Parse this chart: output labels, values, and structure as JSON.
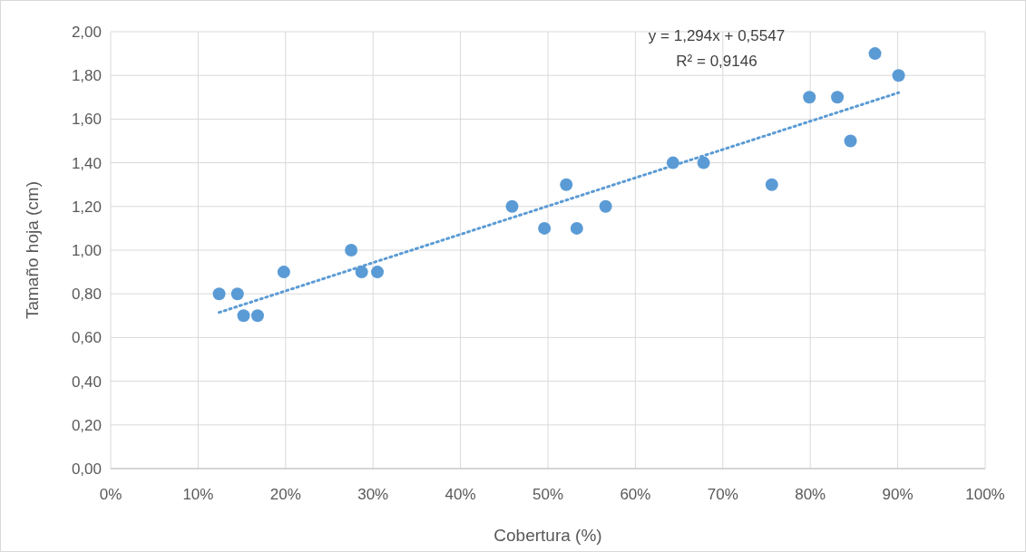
{
  "chart_data": {
    "type": "scatter",
    "xlabel": "Cobertura (%)",
    "ylabel": "Tamaño hoja (cm)",
    "annotations": [
      "y = 1,294x + 0,5547",
      "R² = 0,9146"
    ],
    "xlim": [
      0,
      100
    ],
    "ylim": [
      0,
      2
    ],
    "xticks": [
      {
        "value": 0,
        "label": "0%"
      },
      {
        "value": 10,
        "label": "10%"
      },
      {
        "value": 20,
        "label": "20%"
      },
      {
        "value": 30,
        "label": "30%"
      },
      {
        "value": 40,
        "label": "40%"
      },
      {
        "value": 50,
        "label": "50%"
      },
      {
        "value": 60,
        "label": "60%"
      },
      {
        "value": 70,
        "label": "70%"
      },
      {
        "value": 80,
        "label": "80%"
      },
      {
        "value": 90,
        "label": "90%"
      },
      {
        "value": 100,
        "label": "100%"
      }
    ],
    "yticks": [
      {
        "value": 0,
        "label": "0,00"
      },
      {
        "value": 0.2,
        "label": "0,20"
      },
      {
        "value": 0.4,
        "label": "0,40"
      },
      {
        "value": 0.6,
        "label": "0,60"
      },
      {
        "value": 0.8,
        "label": "0,80"
      },
      {
        "value": 1,
        "label": "1,00"
      },
      {
        "value": 1.2,
        "label": "1,20"
      },
      {
        "value": 1.4,
        "label": "1,40"
      },
      {
        "value": 1.6,
        "label": "1,60"
      },
      {
        "value": 1.8,
        "label": "1,80"
      },
      {
        "value": 2,
        "label": "2,00"
      }
    ],
    "grid": true,
    "series": [
      {
        "type": "scatter",
        "color": "#5b9bd5",
        "marker": "circle",
        "x": [
          12.4,
          14.5,
          15.2,
          16.8,
          19.8,
          27.5,
          28.7,
          30.5,
          45.9,
          49.6,
          52.1,
          53.3,
          56.6,
          64.3,
          67.8,
          75.6,
          79.9,
          83.1,
          84.6,
          87.4,
          90.1
        ],
        "values": [
          0.8,
          0.8,
          0.7,
          0.7,
          0.9,
          1.0,
          0.9,
          0.9,
          1.2,
          1.1,
          1.3,
          1.1,
          1.2,
          1.4,
          1.4,
          1.3,
          1.7,
          1.7,
          1.5,
          1.9,
          1.8
        ]
      },
      {
        "type": "line",
        "color": "#5b9bd5",
        "line_style": "dotted",
        "x": [
          12.4,
          90.1
        ],
        "values": [
          0.715,
          1.721
        ]
      }
    ]
  }
}
